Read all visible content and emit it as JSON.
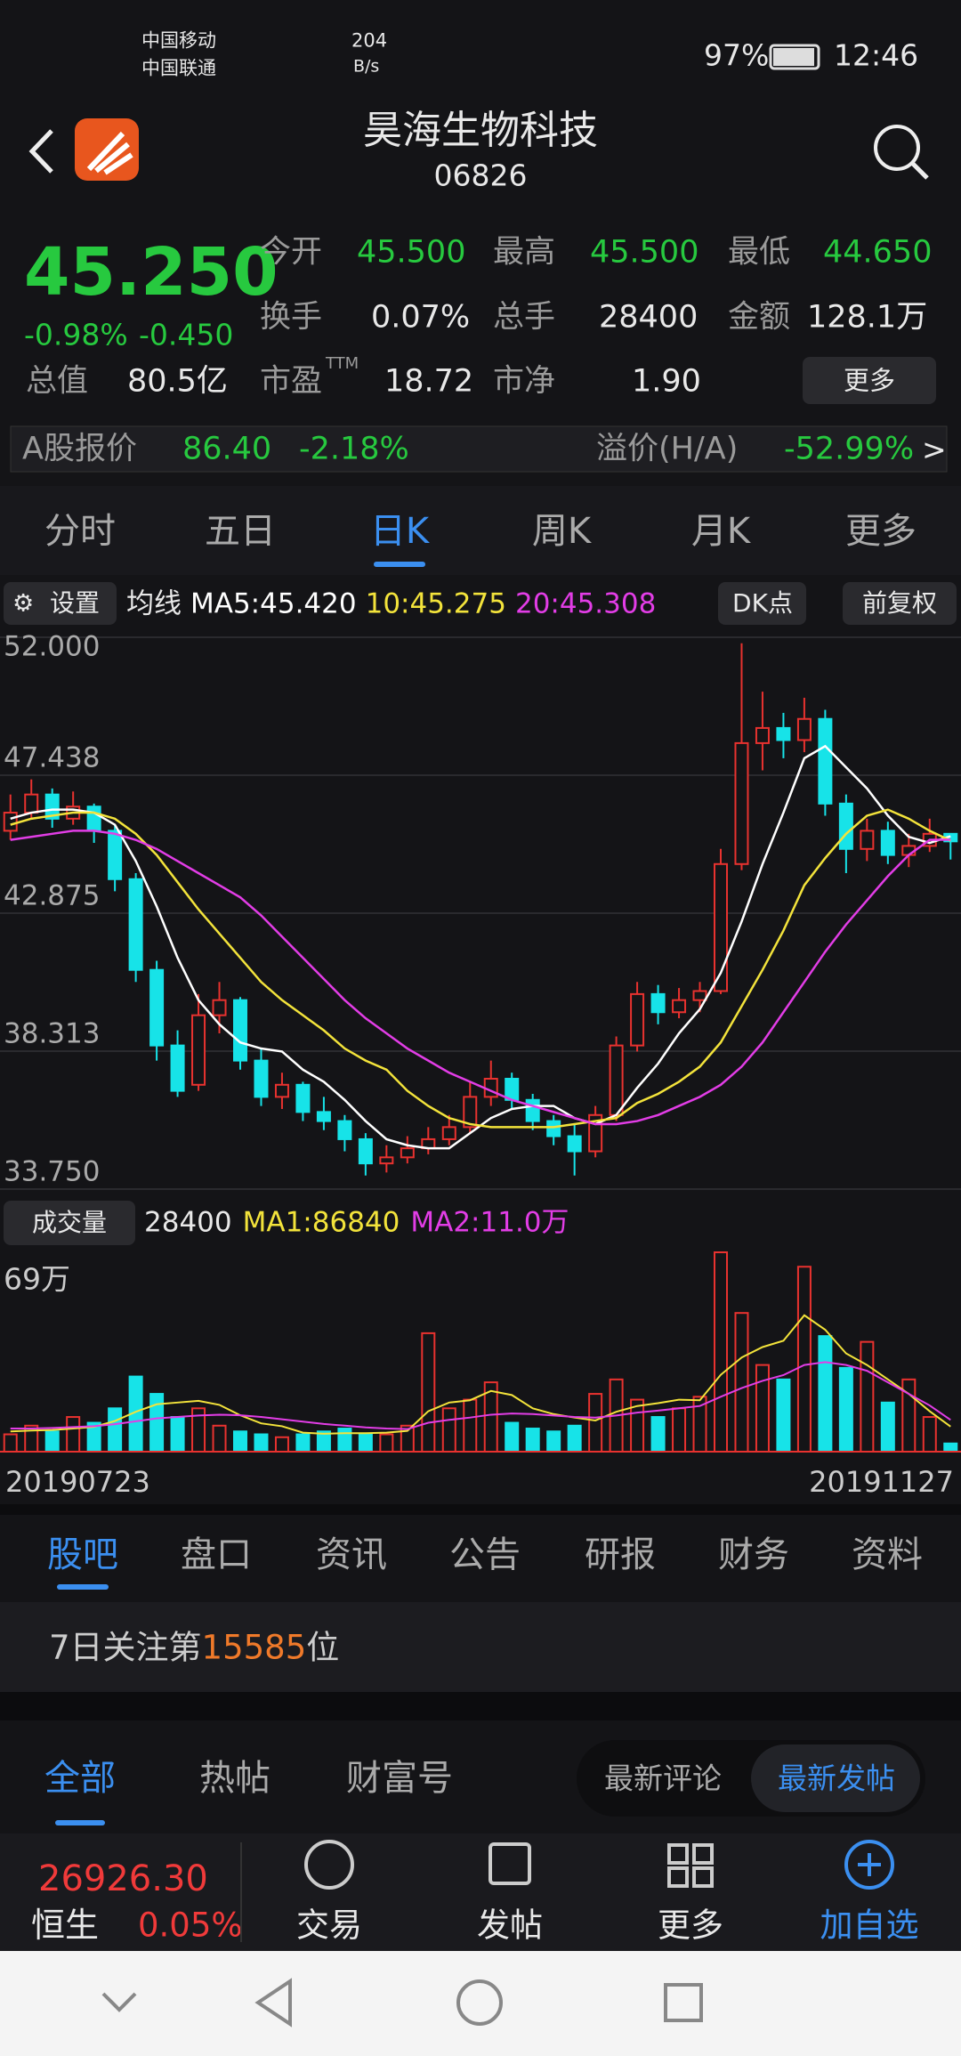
{
  "status": {
    "carrier1": "中国移动",
    "carrier2": "中国联通",
    "speed": "204",
    "speed_unit": "B/s",
    "battery": "97%",
    "time": "12:46"
  },
  "header": {
    "title": "昊海生物科技",
    "code": "06826"
  },
  "quote": {
    "price": "45.250",
    "change_pct": "-0.98%",
    "change": "-0.450",
    "fields": [
      {
        "label": "今开",
        "value": "45.500"
      },
      {
        "label": "最高",
        "value": "45.500"
      },
      {
        "label": "最低",
        "value": "44.650"
      },
      {
        "label": "换手",
        "value": "0.07%"
      },
      {
        "label": "总手",
        "value": "28400"
      },
      {
        "label": "金额",
        "value": "128.1万"
      },
      {
        "label": "总值",
        "value": "80.5亿"
      },
      {
        "label": "市盈",
        "sup": "TTM",
        "value": "18.72"
      },
      {
        "label": "市净",
        "value": "1.90"
      }
    ],
    "more": "更多"
  },
  "a_share": {
    "label": "A股报价",
    "price": "86.40",
    "pct": "-2.18%",
    "premium_label": "溢价(H/A)",
    "premium": "-52.99%",
    "arrow": ">"
  },
  "period_tabs": {
    "items": [
      "分时",
      "五日",
      "日K",
      "周K",
      "月K",
      "更多"
    ],
    "active": 2
  },
  "toolbar": {
    "settings": "设置",
    "dk": "DK点",
    "adjust": "前复权"
  },
  "chart_data": {
    "type": "candlestick",
    "ma_label": "均线",
    "ylim": [
      33.75,
      52
    ],
    "yticks": [
      {
        "value": 52,
        "label": "52.000"
      },
      {
        "value": 47.438,
        "label": "47.438"
      },
      {
        "value": 42.875,
        "label": "42.875"
      },
      {
        "value": 38.313,
        "label": "38.313"
      },
      {
        "value": 33.75,
        "label": "33.750"
      }
    ],
    "grid": true,
    "up_color": "#e8322f",
    "down_color": "#17e3e8",
    "candles": [
      [
        45.6,
        46.8,
        45.3,
        46.2
      ],
      [
        46.2,
        47.3,
        46.0,
        46.8
      ],
      [
        46.8,
        47.0,
        45.7,
        46.0
      ],
      [
        46.0,
        46.9,
        45.8,
        46.4
      ],
      [
        46.4,
        46.5,
        45.2,
        45.6
      ],
      [
        45.6,
        45.8,
        43.6,
        44.0
      ],
      [
        44.0,
        44.2,
        40.6,
        41.0
      ],
      [
        41.0,
        41.3,
        38.0,
        38.5
      ],
      [
        38.5,
        39.0,
        36.8,
        37.0
      ],
      [
        37.2,
        40.2,
        37.0,
        39.5
      ],
      [
        39.5,
        40.6,
        38.9,
        40.0
      ],
      [
        40.0,
        40.1,
        37.7,
        38.0
      ],
      [
        38.0,
        38.4,
        36.5,
        36.8
      ],
      [
        36.8,
        37.6,
        36.4,
        37.2
      ],
      [
        37.2,
        37.3,
        36.0,
        36.3
      ],
      [
        36.3,
        36.8,
        35.7,
        36.0
      ],
      [
        36.0,
        36.2,
        35.0,
        35.4
      ],
      [
        35.4,
        35.6,
        34.2,
        34.6
      ],
      [
        34.6,
        35.2,
        34.3,
        34.8
      ],
      [
        34.8,
        35.5,
        34.6,
        35.1
      ],
      [
        35.1,
        35.8,
        34.9,
        35.4
      ],
      [
        35.4,
        36.2,
        35.2,
        35.8
      ],
      [
        35.8,
        37.3,
        35.6,
        36.8
      ],
      [
        36.8,
        38.0,
        36.5,
        37.4
      ],
      [
        37.4,
        37.6,
        36.4,
        36.7
      ],
      [
        36.7,
        36.9,
        35.7,
        36.0
      ],
      [
        36.0,
        36.2,
        35.2,
        35.5
      ],
      [
        35.5,
        35.9,
        34.2,
        35.0
      ],
      [
        35.0,
        36.5,
        34.8,
        36.2
      ],
      [
        36.2,
        38.8,
        36.0,
        38.5
      ],
      [
        38.5,
        40.6,
        38.3,
        40.2
      ],
      [
        40.2,
        40.5,
        39.2,
        39.6
      ],
      [
        39.6,
        40.4,
        39.4,
        40.0
      ],
      [
        40.0,
        40.6,
        39.6,
        40.3
      ],
      [
        40.3,
        45.0,
        40.2,
        44.5
      ],
      [
        44.5,
        51.8,
        44.3,
        48.5
      ],
      [
        48.5,
        50.2,
        47.6,
        49.0
      ],
      [
        49.0,
        49.5,
        48.0,
        48.6
      ],
      [
        48.6,
        50.0,
        48.2,
        49.3
      ],
      [
        49.3,
        49.6,
        46.1,
        46.5
      ],
      [
        46.5,
        46.8,
        44.2,
        45.0
      ],
      [
        45.0,
        46.0,
        44.6,
        45.6
      ],
      [
        45.6,
        45.9,
        44.5,
        44.8
      ],
      [
        44.8,
        45.5,
        44.4,
        45.1
      ],
      [
        45.1,
        46.0,
        44.9,
        45.5
      ],
      [
        45.5,
        45.5,
        44.65,
        45.25
      ]
    ],
    "series": [
      {
        "name": "MA5:45.420",
        "color": "#ffffff",
        "values": [
          46,
          46.2,
          46.3,
          46.3,
          46.2,
          45.8,
          44.6,
          43.1,
          41.4,
          40.0,
          39.2,
          38.6,
          38.4,
          38.3,
          37.7,
          37.3,
          36.7,
          36.0,
          35.4,
          35.2,
          35.1,
          35.1,
          35.6,
          36.1,
          36.4,
          36.5,
          36.5,
          36.1,
          35.9,
          36.2,
          37.1,
          37.9,
          38.9,
          39.7,
          40.9,
          42.6,
          44.5,
          46.2,
          48.0,
          48.4,
          47.7,
          47.0,
          46.1,
          45.4,
          45.2,
          45.42
        ]
      },
      {
        "name": "10:45.275",
        "color": "#f3e33b",
        "values": [
          45.8,
          46.0,
          46.1,
          46.2,
          46.2,
          46.0,
          45.5,
          44.8,
          43.9,
          43.0,
          42.2,
          41.4,
          40.6,
          40.0,
          39.5,
          39.0,
          38.4,
          38.0,
          37.7,
          37.0,
          36.5,
          36.1,
          35.9,
          35.8,
          35.8,
          35.8,
          35.8,
          35.9,
          36.0,
          36.1,
          36.6,
          36.9,
          37.3,
          37.8,
          38.6,
          39.8,
          41.0,
          42.3,
          43.8,
          44.7,
          45.5,
          46.1,
          46.3,
          46.0,
          45.6,
          45.275
        ]
      },
      {
        "name": "20:45.308",
        "color": "#e23de6",
        "values": [
          45.3,
          45.4,
          45.5,
          45.6,
          45.6,
          45.5,
          45.3,
          45.0,
          44.6,
          44.2,
          43.8,
          43.4,
          42.8,
          42.1,
          41.4,
          40.7,
          40.0,
          39.4,
          38.9,
          38.4,
          38.0,
          37.6,
          37.3,
          37.0,
          36.7,
          36.5,
          36.3,
          36.1,
          35.9,
          35.9,
          36.0,
          36.2,
          36.5,
          36.8,
          37.2,
          37.8,
          38.6,
          39.6,
          40.6,
          41.6,
          42.5,
          43.3,
          44.1,
          44.8,
          45.3,
          45.308
        ]
      }
    ],
    "x_labels": [
      "20190723",
      "20191127"
    ],
    "volume": {
      "title": "成交量",
      "current": "28400",
      "ylim": [
        0,
        690000
      ],
      "yticks": [
        {
          "value": 690000,
          "label": "69万"
        }
      ],
      "values": [
        60000,
        90000,
        70000,
        120000,
        100000,
        150000,
        260000,
        200000,
        120000,
        150000,
        90000,
        70000,
        60000,
        50000,
        60000,
        70000,
        80000,
        60000,
        60000,
        90000,
        410000,
        150000,
        180000,
        240000,
        100000,
        80000,
        70000,
        90000,
        200000,
        250000,
        180000,
        120000,
        150000,
        190000,
        690000,
        480000,
        300000,
        250000,
        640000,
        400000,
        290000,
        380000,
        170000,
        250000,
        120000,
        28400
      ],
      "series": [
        {
          "name": "MA1:86840",
          "color": "#f3e33b",
          "values": [
            70000,
            73000,
            75000,
            80000,
            86000,
            106000,
            138000,
            164000,
            170000,
            176000,
            162000,
            126000,
            98000,
            88000,
            66000,
            62000,
            64000,
            64000,
            66000,
            72000,
            140000,
            170000,
            178000,
            210000,
            196000,
            150000,
            130000,
            118000,
            108000,
            138000,
            158000,
            168000,
            180000,
            178000,
            266000,
            326000,
            362000,
            384000,
            472000,
            422000,
            340000,
            300000,
            250000,
            200000,
            140000,
            86840
          ]
        },
        {
          "name": "MA2:11.0万",
          "color": "#e23de6",
          "values": [
            80000,
            80000,
            82000,
            85000,
            88000,
            95000,
            105000,
            115000,
            120000,
            125000,
            128000,
            126000,
            120000,
            112000,
            104000,
            96000,
            90000,
            84000,
            80000,
            78000,
            100000,
            110000,
            118000,
            128000,
            132000,
            130000,
            125000,
            120000,
            118000,
            125000,
            135000,
            142000,
            150000,
            158000,
            190000,
            220000,
            245000,
            265000,
            300000,
            310000,
            300000,
            280000,
            240000,
            200000,
            160000,
            110000
          ]
        }
      ]
    }
  },
  "content_tabs": {
    "items": [
      "股吧",
      "盘口",
      "资讯",
      "公告",
      "研报",
      "财务",
      "资料"
    ],
    "active": 0
  },
  "rank": {
    "prefix": "7日关注第",
    "number": "15585",
    "suffix": "位"
  },
  "filter_tabs": {
    "items": [
      "全部",
      "热帖",
      "财富号"
    ],
    "active": 0
  },
  "sort_toggle": {
    "items": [
      "最新评论",
      "最新发帖"
    ],
    "active": 1
  },
  "bottom_bar": {
    "index_value": "26926.30",
    "index_name": "恒生",
    "index_pct": "0.05%",
    "buttons": [
      "交易",
      "发帖",
      "更多",
      "加自选"
    ]
  }
}
